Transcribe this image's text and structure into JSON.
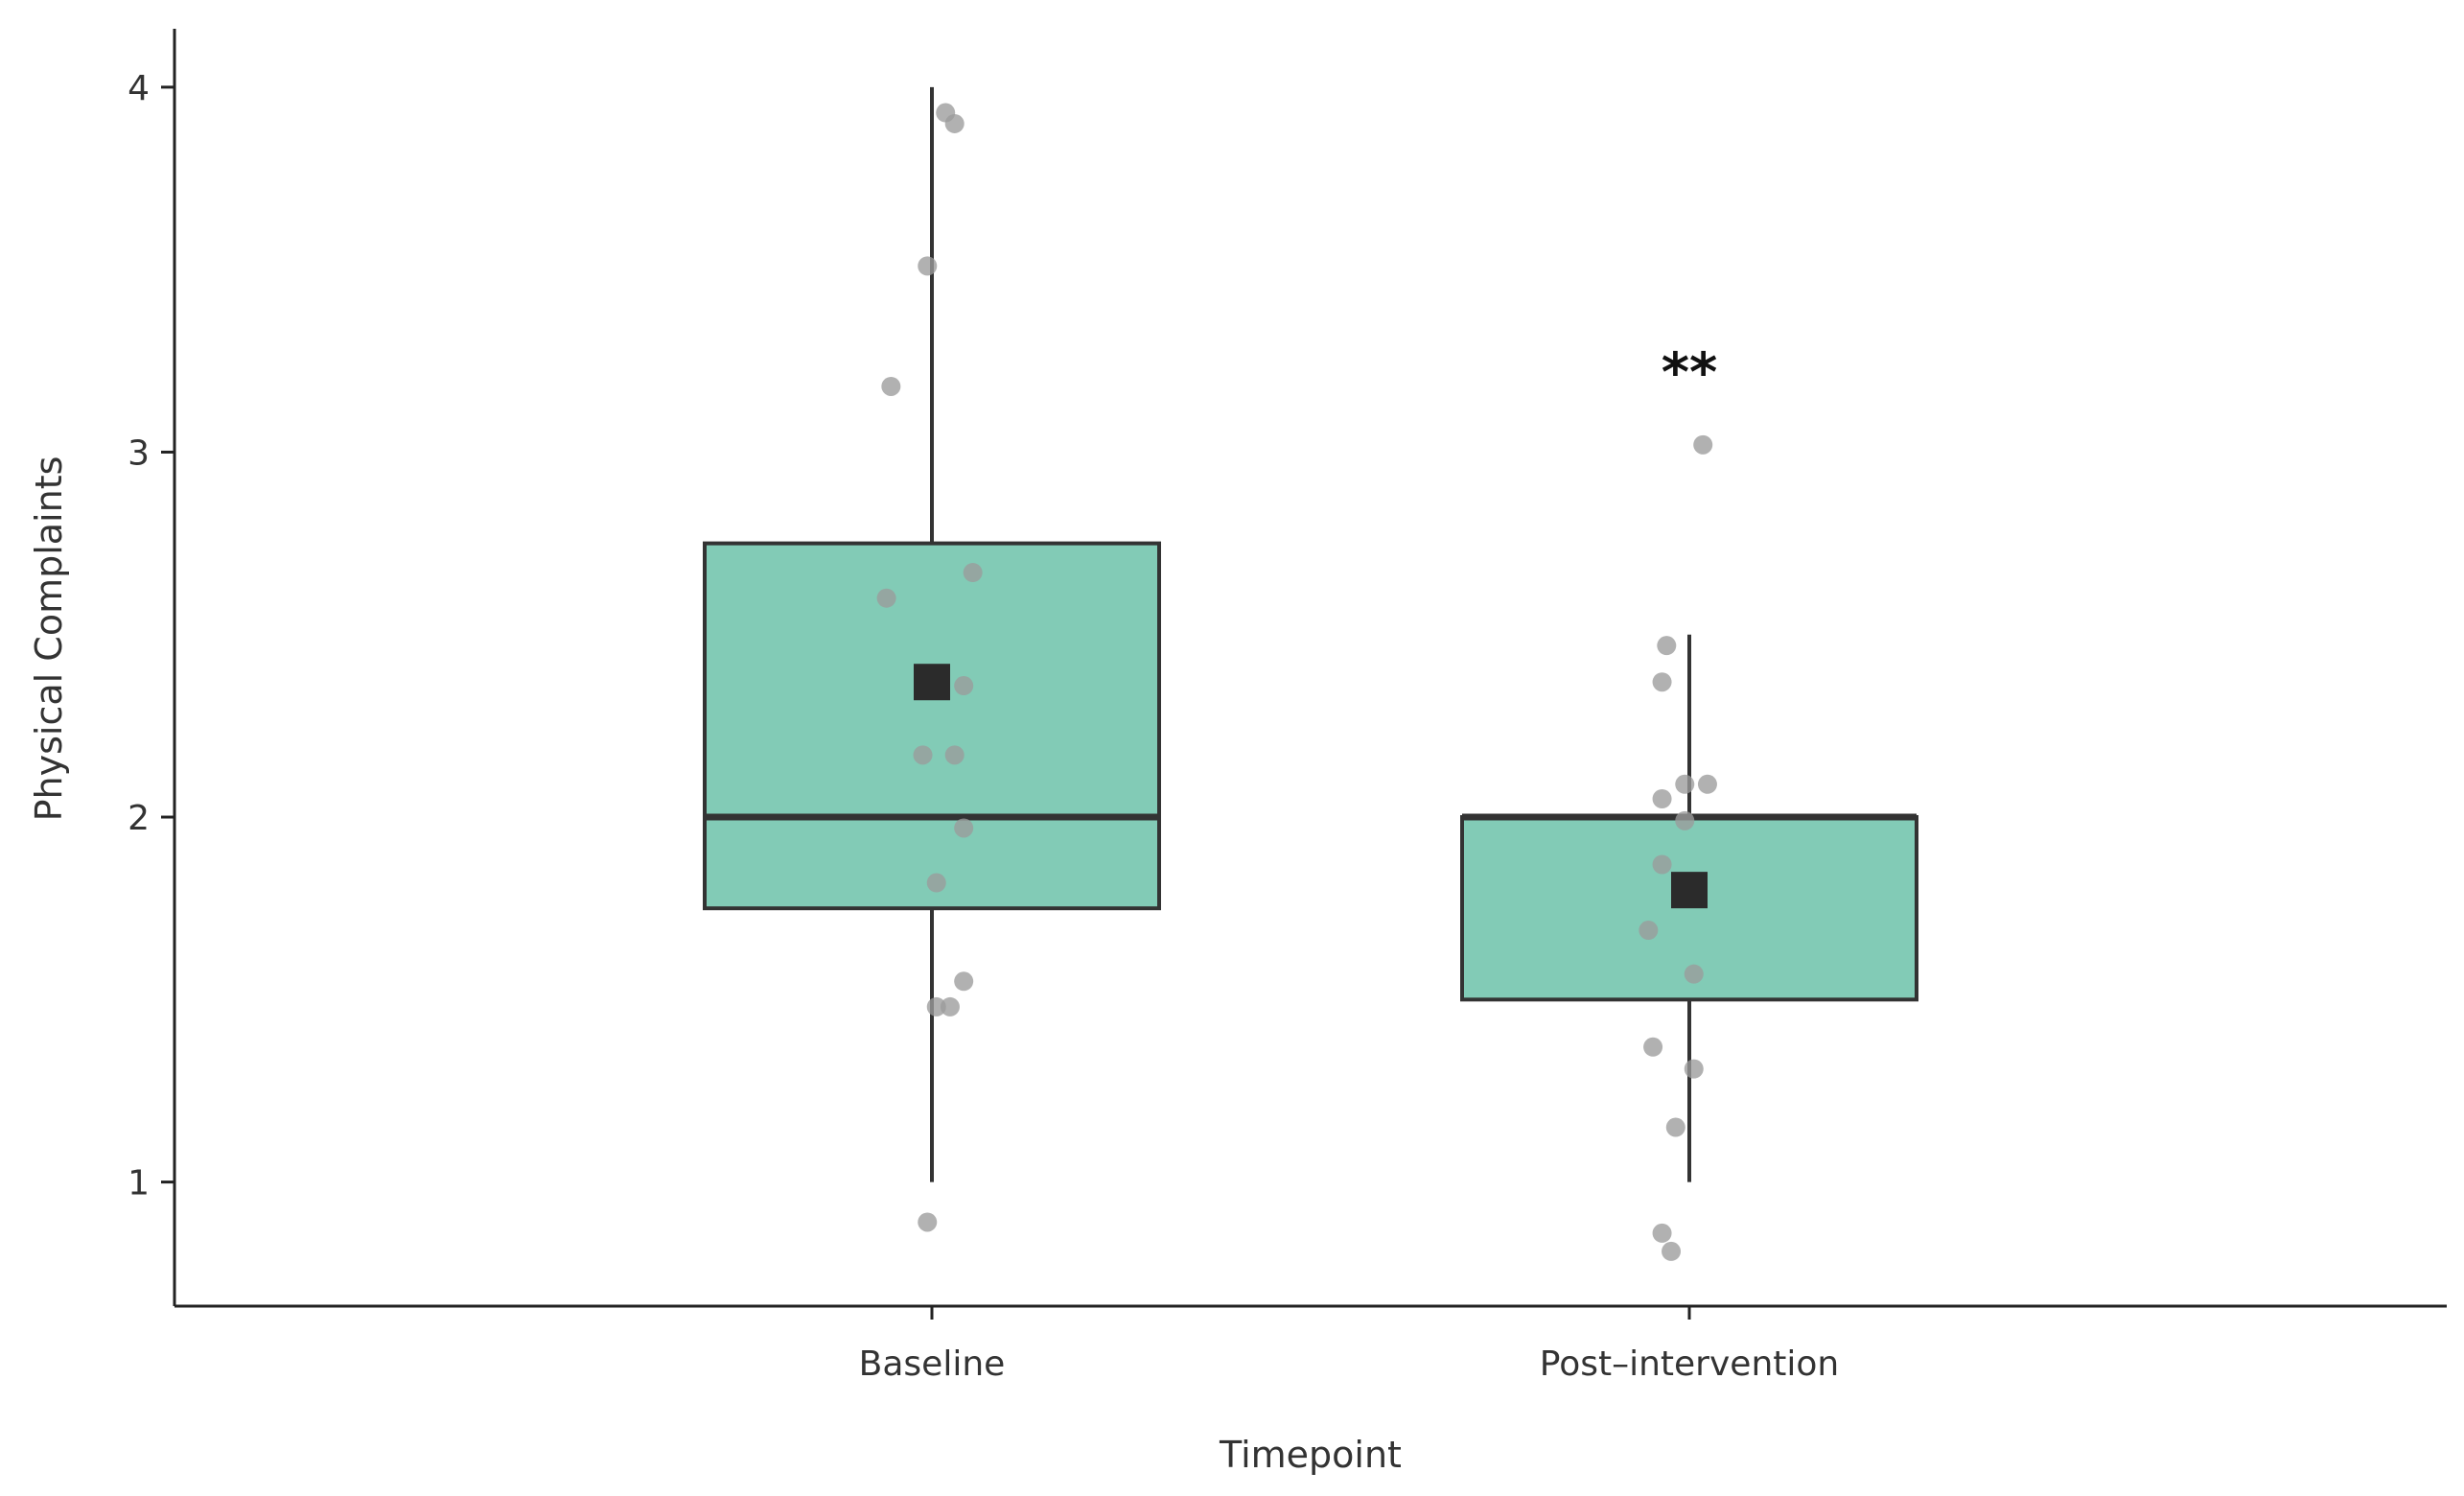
{
  "chart_data": {
    "type": "box",
    "title": "",
    "xlabel": "Timepoint",
    "ylabel": "Physical Complaints",
    "ylim": [
      0.66,
      4.16
    ],
    "yticks": [
      1,
      2,
      3,
      4
    ],
    "grid": false,
    "colors": {
      "box_fill": "#82cbb6",
      "box_stroke": "#333333",
      "point": "#9b9b9b",
      "mean_marker": "#2b2b2b"
    },
    "categories": [
      "Baseline",
      "Post–intervention"
    ],
    "boxes": [
      {
        "category": "Baseline",
        "whisker_low": 1.0,
        "q1": 1.75,
        "median": 2.0,
        "q3": 2.75,
        "whisker_high": 4.0,
        "mean": 2.37,
        "points": [
          {
            "x": 0.03,
            "y": 3.93
          },
          {
            "x": 0.05,
            "y": 3.9
          },
          {
            "x": -0.01,
            "y": 3.51
          },
          {
            "x": -0.09,
            "y": 3.18
          },
          {
            "x": 0.09,
            "y": 2.67
          },
          {
            "x": -0.1,
            "y": 2.6
          },
          {
            "x": 0.07,
            "y": 2.36
          },
          {
            "x": -0.02,
            "y": 2.17
          },
          {
            "x": 0.05,
            "y": 2.17
          },
          {
            "x": 0.07,
            "y": 1.97
          },
          {
            "x": 0.01,
            "y": 1.82
          },
          {
            "x": 0.07,
            "y": 1.55
          },
          {
            "x": 0.01,
            "y": 1.48
          },
          {
            "x": 0.04,
            "y": 1.48
          },
          {
            "x": -0.01,
            "y": 0.89
          }
        ]
      },
      {
        "category": "Post–intervention",
        "whisker_low": 1.0,
        "q1": 1.5,
        "median": 2.0,
        "q3": 2.0,
        "whisker_high": 2.5,
        "mean": 1.8,
        "annotation": "**",
        "points": [
          {
            "x": 0.03,
            "y": 3.02
          },
          {
            "x": -0.05,
            "y": 2.47
          },
          {
            "x": -0.06,
            "y": 2.37
          },
          {
            "x": -0.01,
            "y": 2.09
          },
          {
            "x": 0.04,
            "y": 2.09
          },
          {
            "x": -0.06,
            "y": 2.05
          },
          {
            "x": -0.01,
            "y": 1.99
          },
          {
            "x": -0.06,
            "y": 1.87
          },
          {
            "x": -0.09,
            "y": 1.69
          },
          {
            "x": 0.01,
            "y": 1.57
          },
          {
            "x": -0.08,
            "y": 1.37
          },
          {
            "x": 0.01,
            "y": 1.31
          },
          {
            "x": -0.03,
            "y": 1.15
          },
          {
            "x": -0.06,
            "y": 0.86
          },
          {
            "x": -0.04,
            "y": 0.81
          }
        ]
      }
    ]
  }
}
